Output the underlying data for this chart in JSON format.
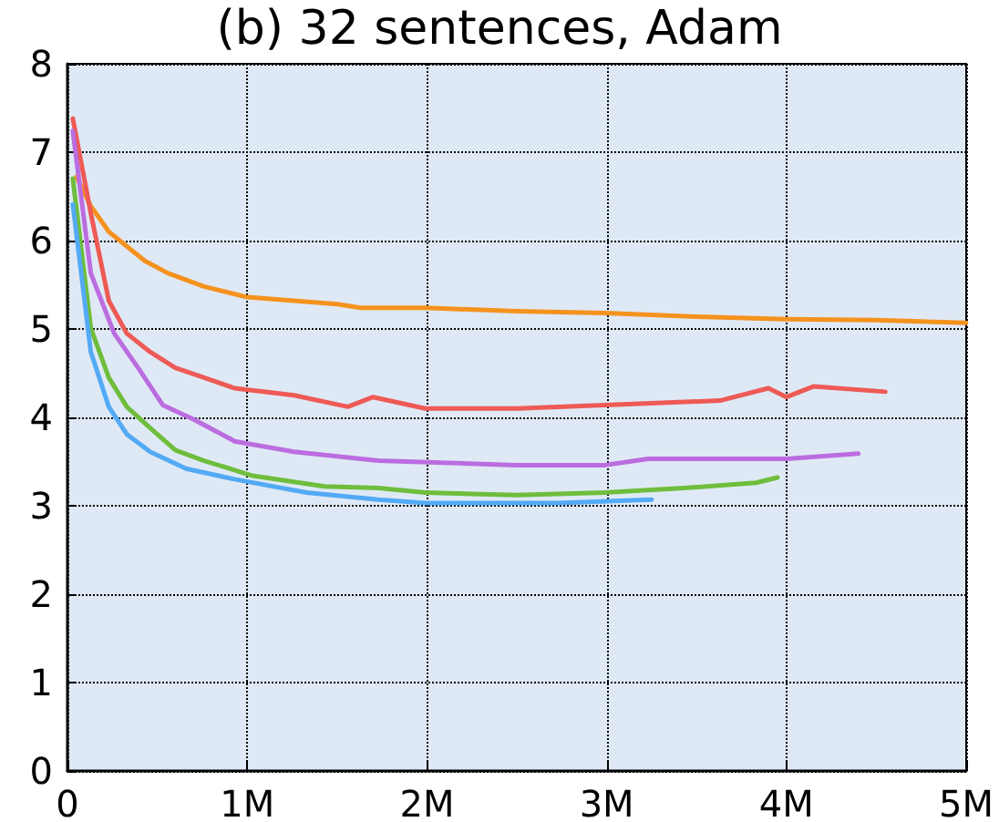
{
  "chart_data": {
    "type": "line",
    "title": "(b) 32 sentences, Adam",
    "xlim": [
      0,
      5000000
    ],
    "xticks": [
      0,
      {
        "value": 1000000,
        "label": "1M"
      },
      {
        "value": 2000000,
        "label": "2M"
      },
      {
        "value": 3000000,
        "label": "3M"
      },
      {
        "value": 4000000,
        "label": "4M"
      },
      {
        "value": 5000000,
        "label": "5M"
      }
    ],
    "ylim": [
      0,
      8
    ],
    "yticks": [
      0,
      1,
      2,
      3,
      4,
      5,
      6,
      7,
      8
    ],
    "grid": true,
    "marker": "none",
    "line_style": "solid",
    "series": [
      {
        "color": "#f5921e",
        "x": [
          50000,
          130000,
          230000,
          430000,
          560000,
          760000,
          1000000,
          1260000,
          1500000,
          1630000,
          1990000,
          2500000,
          2990000,
          3500000,
          4000000,
          4500000,
          5000000
        ],
        "values": [
          6.72,
          6.39,
          6.1,
          5.77,
          5.63,
          5.48,
          5.36,
          5.32,
          5.28,
          5.24,
          5.24,
          5.2,
          5.18,
          5.14,
          5.11,
          5.1,
          5.07
        ]
      },
      {
        "color": "#ee5a55",
        "x": [
          30000,
          130000,
          230000,
          330000,
          460000,
          600000,
          760000,
          930000,
          1260000,
          1560000,
          1700000,
          1990000,
          2500000,
          2990000,
          3630000,
          3900000,
          4000000,
          4150000,
          4550000
        ],
        "values": [
          7.38,
          6.31,
          5.32,
          4.95,
          4.74,
          4.56,
          4.45,
          4.33,
          4.25,
          4.12,
          4.23,
          4.1,
          4.1,
          4.14,
          4.19,
          4.33,
          4.23,
          4.35,
          4.29
        ]
      },
      {
        "color": "#bb6de0",
        "x": [
          30000,
          130000,
          260000,
          400000,
          530000,
          700000,
          930000,
          1260000,
          1730000,
          2500000,
          2990000,
          3230000,
          4000000,
          4400000
        ],
        "values": [
          7.24,
          5.63,
          4.95,
          4.54,
          4.14,
          3.98,
          3.73,
          3.61,
          3.51,
          3.46,
          3.46,
          3.53,
          3.53,
          3.59
        ]
      },
      {
        "color": "#6ebd3c",
        "x": [
          30000,
          130000,
          230000,
          330000,
          460000,
          600000,
          760000,
          1030000,
          1430000,
          1730000,
          1990000,
          2500000,
          2990000,
          3430000,
          3830000,
          3950000
        ],
        "values": [
          6.7,
          5.01,
          4.45,
          4.12,
          3.88,
          3.63,
          3.51,
          3.34,
          3.22,
          3.2,
          3.15,
          3.12,
          3.15,
          3.2,
          3.26,
          3.32
        ]
      },
      {
        "color": "#53aaf5",
        "x": [
          30000,
          130000,
          230000,
          330000,
          460000,
          660000,
          930000,
          1330000,
          1730000,
          1990000,
          2500000,
          2730000,
          3250000
        ],
        "values": [
          6.41,
          4.74,
          4.12,
          3.81,
          3.61,
          3.42,
          3.3,
          3.15,
          3.07,
          3.03,
          3.03,
          3.03,
          3.07
        ]
      }
    ]
  }
}
